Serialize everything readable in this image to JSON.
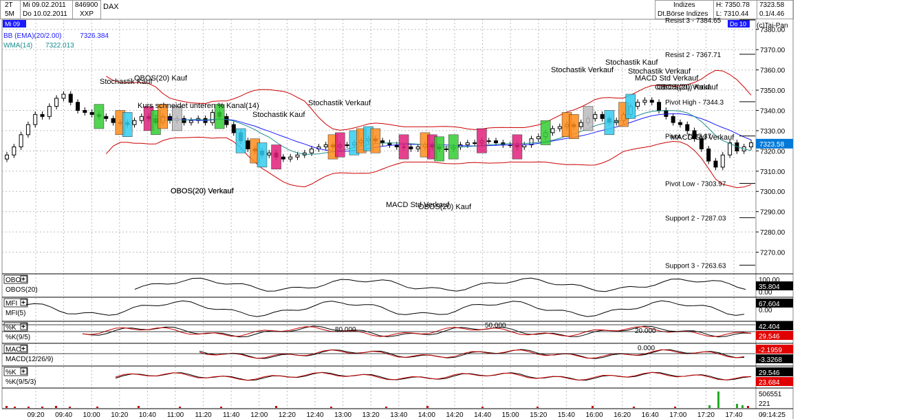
{
  "header": {
    "period_a": "2T",
    "period_b": "5M",
    "date_a": "Mi 09.02.2011",
    "date_b": "Do 10.02.2011",
    "code_a": "846900",
    "code_b": "XXP",
    "symbol": "DAX",
    "market": "Indizes",
    "exchange": "Dt.Börse Indizes",
    "high": "H: 7350.78",
    "low": "L: 7310.44",
    "last": "7323.58",
    "change": "0.1/4.46",
    "copyright": "(c)Tai-Pan",
    "day_marker_left": "Mi 09",
    "day_marker_right": "Do 10"
  },
  "indicators": {
    "bb": {
      "label": "BB (EMA)(20/2.00)",
      "value": "7326.384",
      "color": "#1a1aff"
    },
    "wma": {
      "label": "WMA(14)",
      "value": "7322.013",
      "color": "#1a8c8c"
    }
  },
  "chart_data": {
    "type": "candlestick",
    "y_axis": {
      "min": 7260,
      "max": 7385,
      "ticks": [
        "7380.00",
        "7370.00",
        "7360.00",
        "7350.00",
        "7340.00",
        "7330.00",
        "7320.00",
        "7310.00",
        "7300.00",
        "7290.00",
        "7280.00",
        "7270.00"
      ]
    },
    "x_ticks": [
      "09:20",
      "09:40",
      "10:00",
      "10:20",
      "10:40",
      "11:00",
      "11:20",
      "11:40",
      "12:00",
      "12:20",
      "12:40",
      "13:00",
      "13:20",
      "13:40",
      "14:00",
      "14:20",
      "14:40",
      "15:00",
      "15:20",
      "15:40",
      "16:00",
      "16:20",
      "16:40",
      "17:00",
      "17:20",
      "17:40",
      "-"
    ],
    "last_price": "7323.58",
    "closes": [
      7318,
      7322,
      7328,
      7333,
      7338,
      7337,
      7342,
      7346,
      7348,
      7344,
      7340,
      7339,
      7338,
      7337,
      7336,
      7334,
      7334,
      7333,
      7335,
      7337,
      7336,
      7334,
      7337,
      7335,
      7336,
      7334,
      7335,
      7336,
      7334,
      7339,
      7337,
      7333,
      7329,
      7325,
      7321,
      7320,
      7318,
      7319,
      7317,
      7316,
      7317,
      7318,
      7319,
      7321,
      7322,
      7323,
      7322,
      7323,
      7323,
      7324,
      7325,
      7326,
      7325,
      7324,
      7323,
      7322,
      7322,
      7321,
      7322,
      7323,
      7322,
      7321,
      7321,
      7322,
      7323,
      7324,
      7324,
      7325,
      7325,
      7324,
      7323,
      7323,
      7322,
      7323,
      7326,
      7327,
      7329,
      7331,
      7332,
      7333,
      7332,
      7334,
      7336,
      7338,
      7336,
      7334,
      7335,
      7338,
      7342,
      7344,
      7345,
      7344,
      7340,
      7337,
      7334,
      7333,
      7330,
      7326,
      7321,
      7315,
      7312,
      7318,
      7324,
      7320,
      7322,
      7324
    ],
    "pivots": [
      {
        "label": "Resist 3 - 7384.65",
        "value": 7384.65
      },
      {
        "label": "Resist 2 - 7367.71",
        "value": 7367.71
      },
      {
        "label": "Pivot High - 7344.3",
        "value": 7344.3
      },
      {
        "label": "Pivot - 7327.37",
        "value": 7327.37
      },
      {
        "label": "Pivot Low - 7303.97",
        "value": 7303.97
      },
      {
        "label": "Support 2 - 7287.03",
        "value": 7287.03
      },
      {
        "label": "Support 3 - 7263.63",
        "value": 7263.63
      }
    ],
    "annotations": [
      "Stochastik Kauf",
      "OBOS(20) Kauf",
      "OBOS(20) Verkauf",
      "Stochastik Verkauf",
      "Kurs schneidet unteren % Kanal(14)",
      "MACD Std Verkauf",
      "Stochastik Kauf",
      "OBOS(20) Verkauf",
      "OBOS(20) Kauf",
      "MACD Std Verkauf",
      "OBOS(20) Kauf",
      "Stochastik Verkauf",
      "Stochastik Kauf",
      "Stochastik Verkauf",
      "MACD Std Verkauf",
      "OBOS(20) Verkauf"
    ]
  },
  "panels": {
    "obos": {
      "tag": "OBOS",
      "name": "OBOS(20)",
      "value": "35.804",
      "scale_top": "100.00",
      "scale_bot": "0.00"
    },
    "mfi": {
      "tag": "MFI",
      "name": "MFI(5)",
      "value": "67.604",
      "scale_bot": "0.00"
    },
    "stoch": {
      "tag": "%K",
      "name": "%K(9/5)",
      "value_a": "42.404",
      "value_b": "29.546",
      "level_80": "80.000",
      "level_50": "50.000",
      "level_20": "20.000"
    },
    "macd": {
      "tag": "MACD",
      "name": "MACD(12/26/9)",
      "value_a": "-2.1959",
      "value_b": "-3.3268",
      "zero": "0.000"
    },
    "stoch2": {
      "tag": "%K",
      "name": "%K(9/5/3)",
      "value_a": "29.546",
      "value_b": "23.684"
    },
    "volume": {
      "value_a": "506551",
      "value_b": "221"
    }
  },
  "footer": {
    "time": "09:14:25"
  },
  "colors": {
    "red_band": "#cc0000",
    "blue_line": "#1a1aff",
    "teal_line": "#1a8c8c",
    "value_box": "#000000",
    "value_box_red": "#e00000",
    "last_price_box": "#0078d7"
  }
}
